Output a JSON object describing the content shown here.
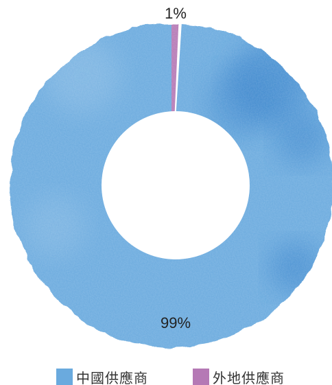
{
  "chart_data": {
    "type": "donut",
    "title": "",
    "categories": [
      "中國供應商",
      "外地供應商"
    ],
    "values": [
      99,
      1
    ],
    "data_labels": [
      "99%",
      "1%"
    ],
    "colors": [
      "#6aaade",
      "#b579b5"
    ],
    "accent_dark": "#2f7cc8",
    "legend_placement": "bottom"
  },
  "legend": {
    "items": [
      {
        "label": "中國供應商",
        "color": "#6aaade"
      },
      {
        "label": "外地供應商",
        "color": "#b579b5"
      }
    ]
  }
}
